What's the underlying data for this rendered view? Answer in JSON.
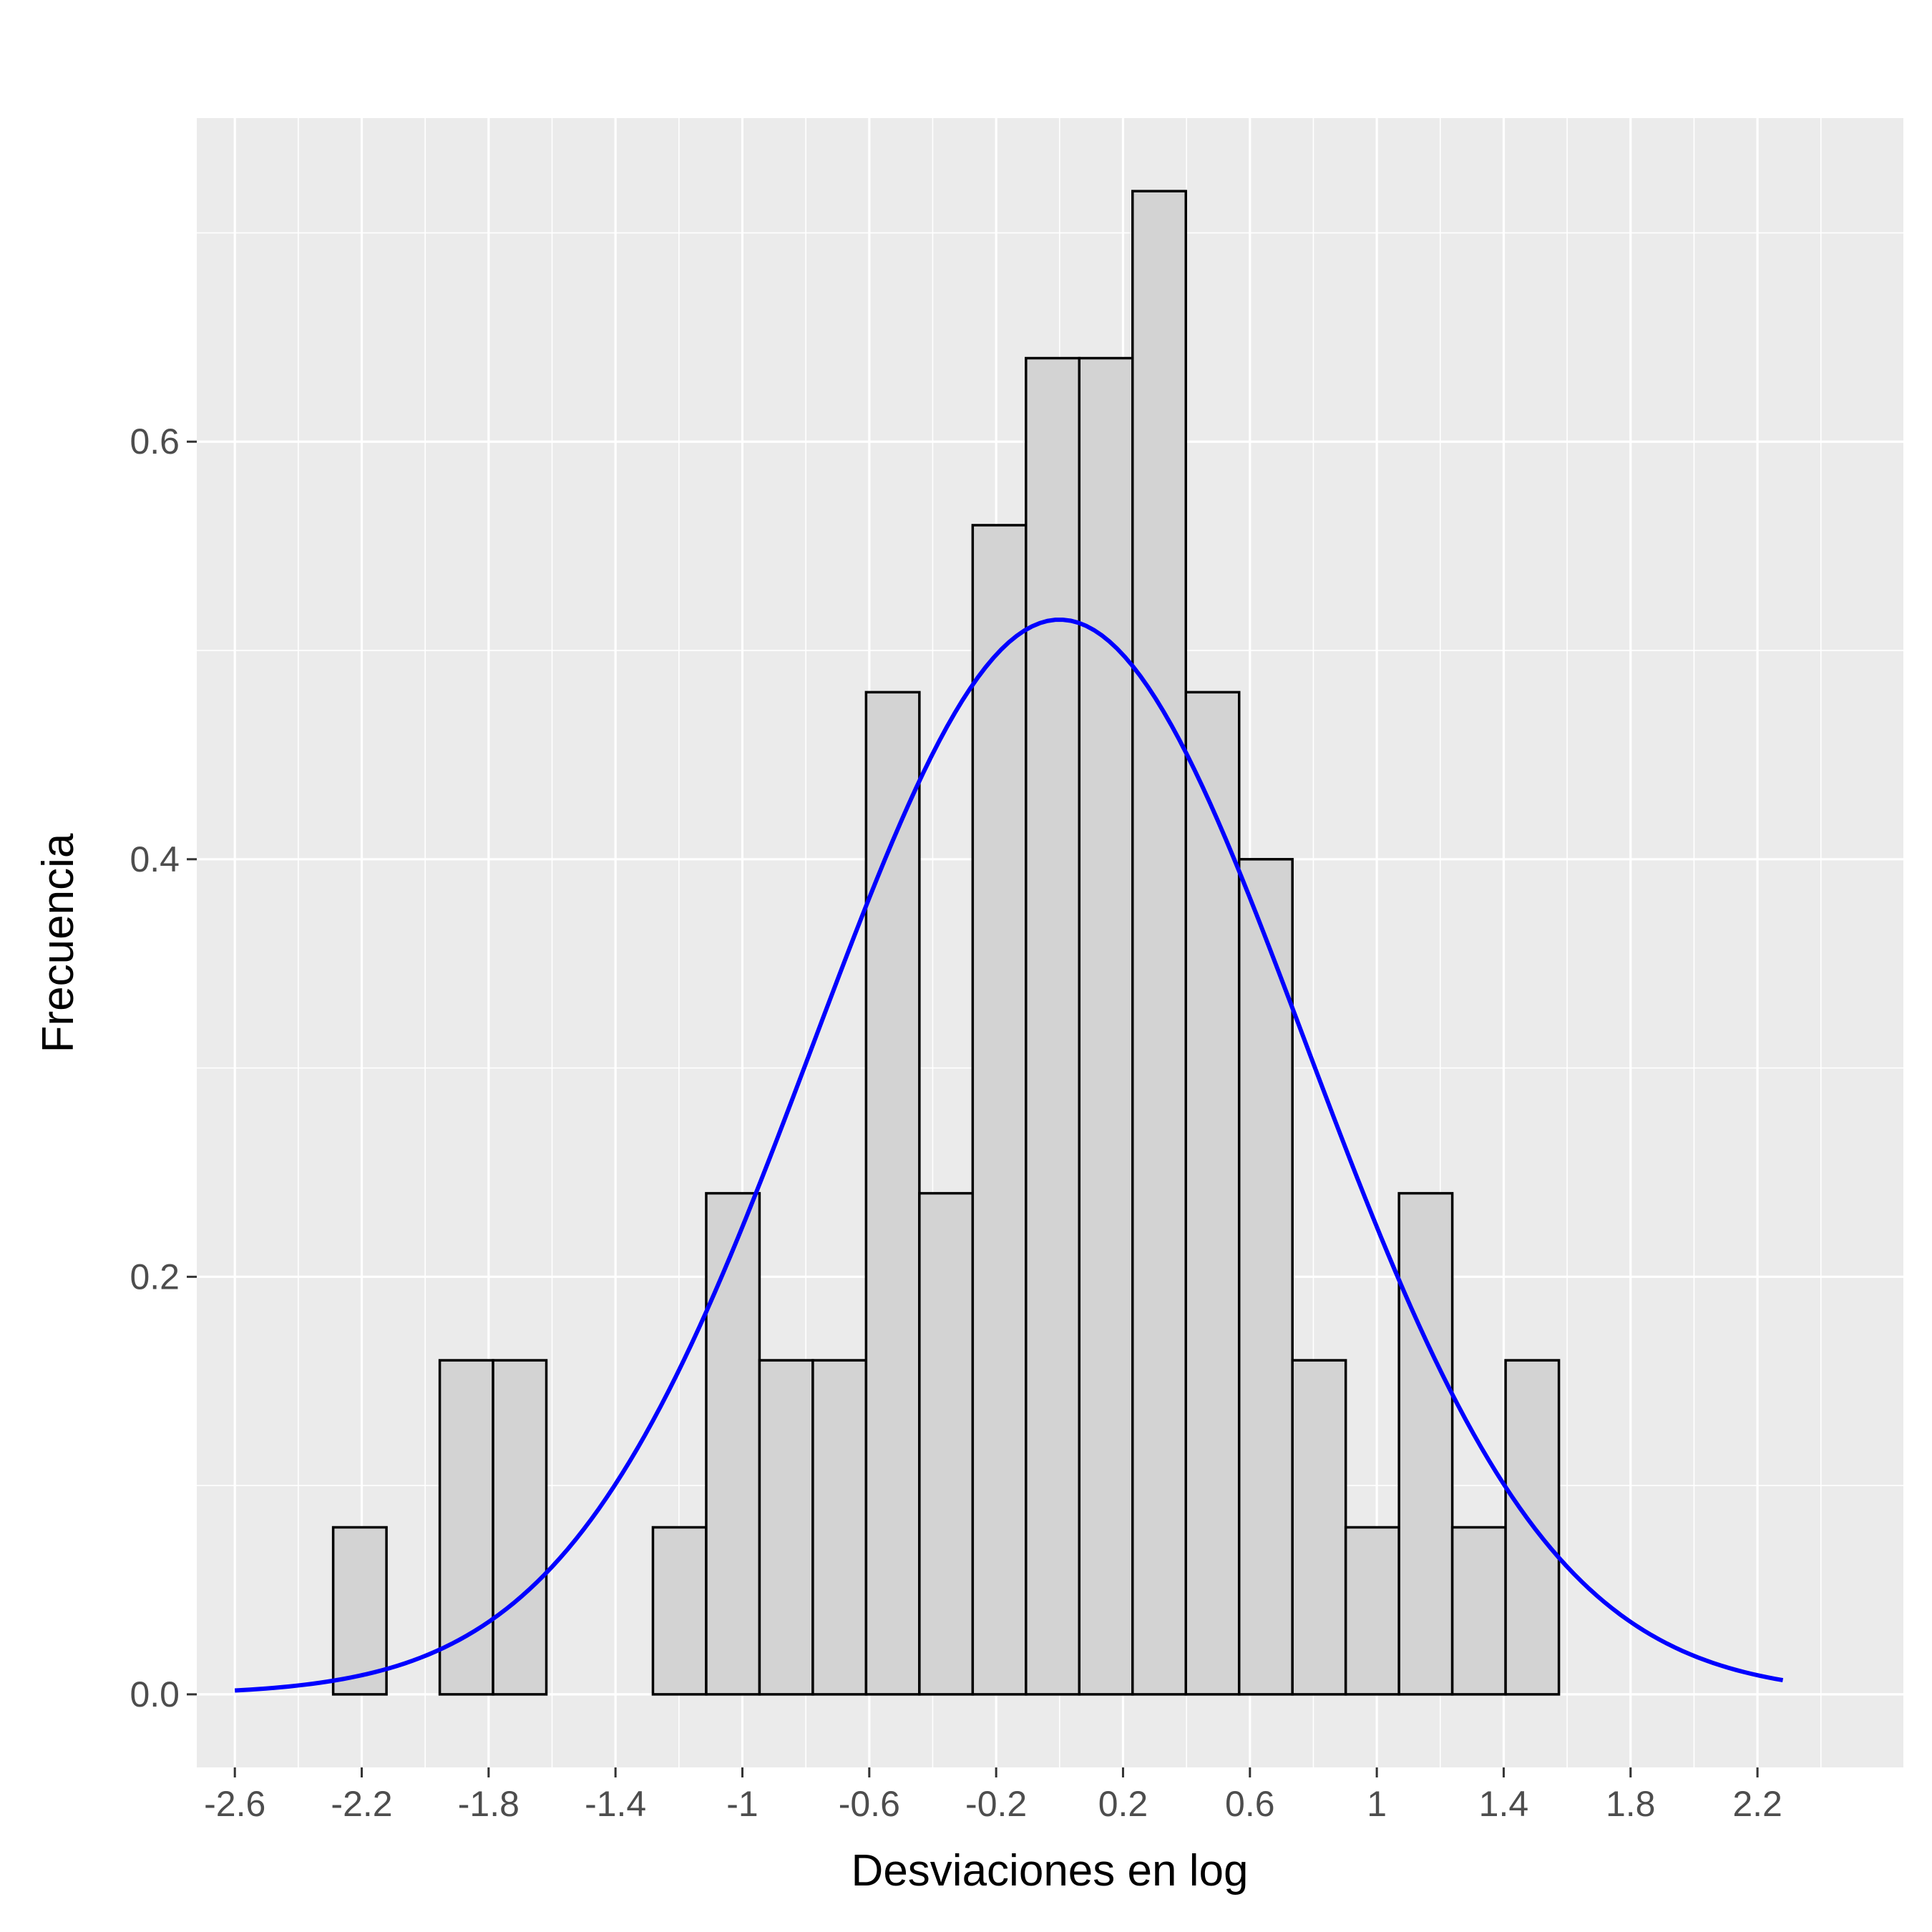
{
  "chart_data": {
    "type": "bar",
    "subtype": "histogram-with-density-curve",
    "title": "",
    "xlabel": "Desviaciones en log",
    "ylabel": "Frecuencia",
    "xlim": [
      -2.72,
      2.66
    ],
    "ylim": [
      -0.035,
      0.755
    ],
    "x_ticks": [
      -2.6,
      -2.2,
      -1.8,
      -1.4,
      -1,
      -0.6,
      -0.2,
      0.2,
      0.6,
      1,
      1.4,
      1.8,
      2.2
    ],
    "x_tick_labels": [
      "-2.6",
      "-2.2",
      "-1.8",
      "-1.4",
      "-1",
      "-0.6",
      "-0.2",
      "0.2",
      "0.6",
      "1",
      "1.4",
      "1.8",
      "2.2"
    ],
    "y_ticks": [
      0.0,
      0.2,
      0.4,
      0.6
    ],
    "y_tick_labels": [
      "0.0",
      "0.2",
      "0.4",
      "0.6"
    ],
    "grid": true,
    "bin_width": 0.168,
    "bins": [
      {
        "x0": -2.29,
        "x1": -2.122,
        "value": 0.08
      },
      {
        "x0": -1.954,
        "x1": -1.786,
        "value": 0.16
      },
      {
        "x0": -1.786,
        "x1": -1.618,
        "value": 0.16
      },
      {
        "x0": -1.282,
        "x1": -1.114,
        "value": 0.08
      },
      {
        "x0": -1.114,
        "x1": -0.946,
        "value": 0.24
      },
      {
        "x0": -0.946,
        "x1": -0.778,
        "value": 0.16
      },
      {
        "x0": -0.778,
        "x1": -0.61,
        "value": 0.16
      },
      {
        "x0": -0.61,
        "x1": -0.442,
        "value": 0.48
      },
      {
        "x0": -0.442,
        "x1": -0.274,
        "value": 0.24
      },
      {
        "x0": -0.274,
        "x1": -0.106,
        "value": 0.56
      },
      {
        "x0": -0.106,
        "x1": 0.062,
        "value": 0.64
      },
      {
        "x0": 0.062,
        "x1": 0.23,
        "value": 0.64
      },
      {
        "x0": 0.23,
        "x1": 0.398,
        "value": 0.72
      },
      {
        "x0": 0.398,
        "x1": 0.566,
        "value": 0.48
      },
      {
        "x0": 0.566,
        "x1": 0.734,
        "value": 0.4
      },
      {
        "x0": 0.734,
        "x1": 0.902,
        "value": 0.16
      },
      {
        "x0": 0.902,
        "x1": 1.07,
        "value": 0.08
      },
      {
        "x0": 1.07,
        "x1": 1.238,
        "value": 0.24
      },
      {
        "x0": 1.238,
        "x1": 1.406,
        "value": 0.08
      },
      {
        "x0": 1.406,
        "x1": 1.574,
        "value": 0.16
      }
    ],
    "density_curve": {
      "distribution": "normal",
      "mean": 0.0,
      "sd": 0.775,
      "x_range": [
        -2.6,
        2.28
      ],
      "color": "#0000ff"
    },
    "colors": {
      "panel_background": "#ebebeb",
      "grid": "#ffffff",
      "bar_fill": "#d3d3d3",
      "bar_stroke": "#000000"
    }
  }
}
